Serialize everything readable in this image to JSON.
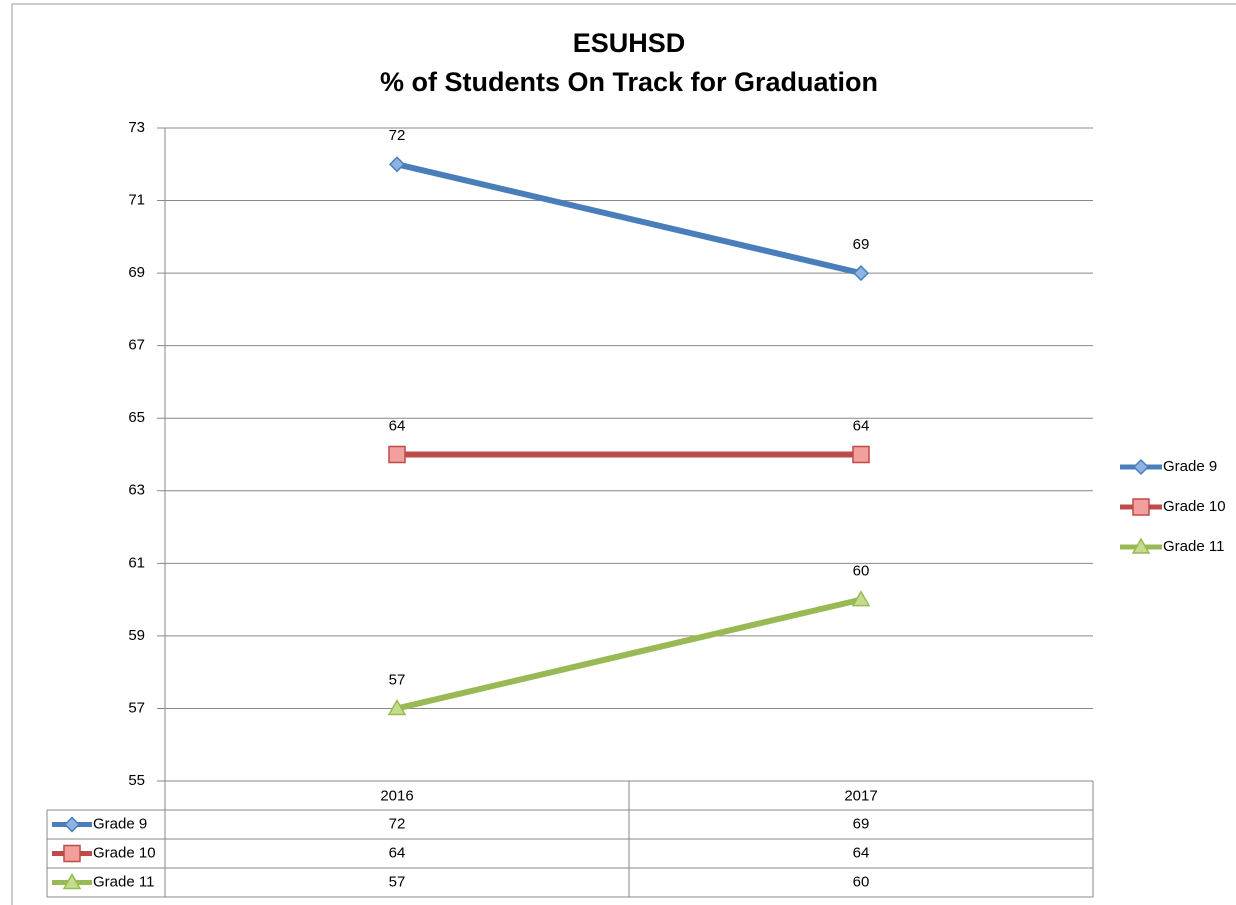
{
  "chart_data": {
    "type": "line",
    "title": [
      "ESUHSD",
      "% of Students On Track for Graduation"
    ],
    "categories": [
      "2016",
      "2017"
    ],
    "series": [
      {
        "name": "Grade 9",
        "color": "#4a7ebb",
        "marker": "diamond",
        "values": [
          72,
          69
        ]
      },
      {
        "name": "Grade 10",
        "color": "#be4b48",
        "marker": "square",
        "values": [
          64,
          64
        ]
      },
      {
        "name": "Grade 11",
        "color": "#98b954",
        "marker": "triangle",
        "values": [
          57,
          60
        ]
      }
    ],
    "ylim": [
      55,
      73
    ],
    "yticks": [
      55,
      57,
      59,
      61,
      63,
      65,
      67,
      69,
      71,
      73
    ],
    "grid": true,
    "legend": "right",
    "data_table": true
  }
}
